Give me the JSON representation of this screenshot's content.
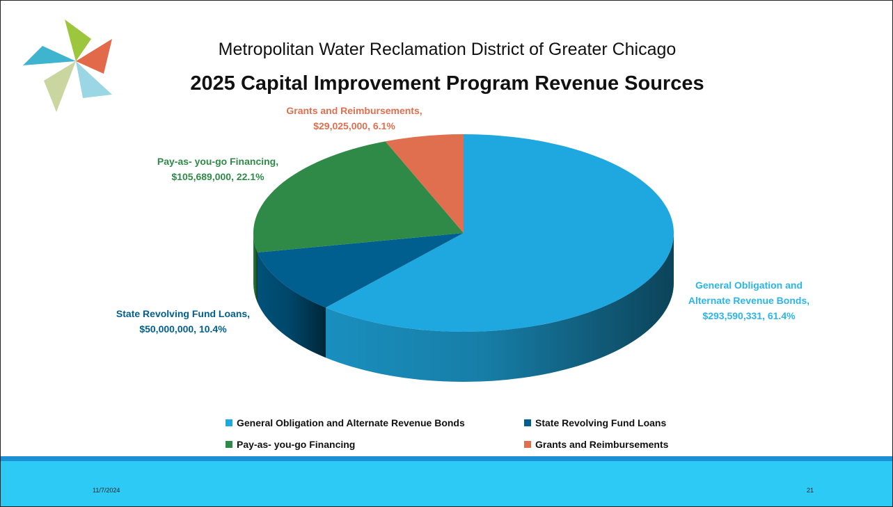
{
  "header": {
    "title": "Metropolitan Water Reclamation District of Greater Chicago"
  },
  "chart_data": {
    "type": "pie",
    "title": "2025 Capital Improvement Program Revenue Sources",
    "categories": [
      "General Obligation and Alternate Revenue Bonds",
      "State Revolving Fund Loans",
      "Pay-as- you-go Financing",
      "Grants and Reimbursements"
    ],
    "values": [
      293590331,
      50000000,
      105689000,
      29025000
    ],
    "value_labels": [
      "General Obligation and Alternate Revenue Bonds, $293,590,331, 61.4%",
      "State Revolving Fund Loans, $50,000,000, 10.4%",
      "Pay-as- you-go Financing, $105,689,000, 22.1%",
      "Grants and Reimbursements, $29,025,000, 6.1%"
    ],
    "colors": [
      "#1ea8df",
      "#005f8e",
      "#2f8a48",
      "#df6f4f"
    ],
    "label_colors": [
      "#2bb6ea",
      "#005f8e",
      "#2f8a48",
      "#df6f4f"
    ],
    "legend": "bottom"
  },
  "footer": {
    "date": "11/7/2024",
    "page": "21"
  }
}
